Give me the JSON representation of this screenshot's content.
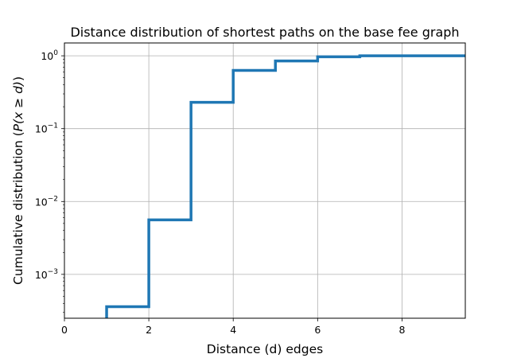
{
  "chart_data": {
    "type": "line",
    "subtype": "step",
    "title": "Distance distribution of shortest paths on the base fee graph",
    "xlabel": "Distance (d) edges",
    "ylabel": "Cumulative distribution (P(x ≥ d))",
    "ylabel_parts": {
      "prefix": "Cumulative distribution (",
      "math": "P(x ≥ d)",
      "suffix": ")"
    },
    "x_scale": "linear",
    "y_scale": "log",
    "xlim": [
      0,
      9.5
    ],
    "ylim": [
      0.00025,
      1.5
    ],
    "grid": true,
    "x_ticks": [
      0,
      2,
      4,
      6,
      8
    ],
    "x_tick_labels": [
      "0",
      "2",
      "4",
      "6",
      "8"
    ],
    "y_ticks": [
      0.001,
      0.01,
      0.1,
      1
    ],
    "y_tick_labels": [
      {
        "base": "10",
        "exp": "−3"
      },
      {
        "base": "10",
        "exp": "−2"
      },
      {
        "base": "10",
        "exp": "−1"
      },
      {
        "base": "10",
        "exp": "0"
      }
    ],
    "color": "#1f77b4",
    "series": [
      {
        "step_where": "post",
        "x": [
          1,
          2,
          3,
          4,
          5,
          6,
          7,
          9.5
        ],
        "y": [
          0.00036,
          0.0056,
          0.23,
          0.63,
          0.85,
          0.97,
          1.0,
          1.0
        ]
      }
    ]
  }
}
